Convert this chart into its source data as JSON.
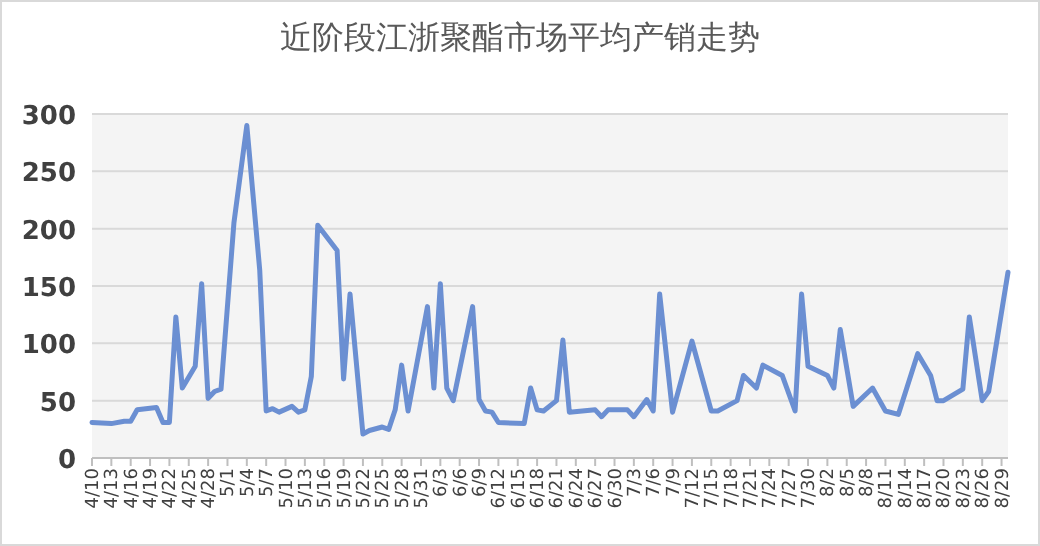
{
  "chart_data": {
    "type": "line",
    "title": "近阶段江浙聚酯市场平均产销走势",
    "x": [
      "--04-10",
      "--04-13",
      "--04-15",
      "--04-16",
      "--04-17",
      "--04-20",
      "--04-21",
      "--04-22",
      "--04-23",
      "--04-24",
      "--04-26",
      "--04-27",
      "--04-28",
      "--04-29",
      "--04-30",
      "--05-02",
      "--05-04",
      "--05-06",
      "--05-07",
      "--05-08",
      "--05-09",
      "--05-11",
      "--05-12",
      "--05-13",
      "--05-14",
      "--05-15",
      "--05-18",
      "--05-19",
      "--05-20",
      "--05-22",
      "--05-23",
      "--05-25",
      "--05-26",
      "--05-27",
      "--05-28",
      "--05-29",
      "--06-01",
      "--06-02",
      "--06-03",
      "--06-04",
      "--06-05",
      "--06-08",
      "--06-09",
      "--06-10",
      "--06-11",
      "--06-12",
      "--06-16",
      "--06-17",
      "--06-18",
      "--06-19",
      "--06-21",
      "--06-22",
      "--06-23",
      "--06-27",
      "--06-28",
      "--06-29",
      "--07-02",
      "--07-03",
      "--07-05",
      "--07-06",
      "--07-07",
      "--07-09",
      "--07-12",
      "--07-15",
      "--07-16",
      "--07-19",
      "--07-20",
      "--07-22",
      "--07-23",
      "--07-26",
      "--07-28",
      "--07-29",
      "--07-30",
      "--08-02",
      "--08-03",
      "--08-04",
      "--08-06",
      "--08-09",
      "--08-11",
      "--08-13",
      "--08-16",
      "--08-18",
      "--08-19",
      "--08-20",
      "--08-23",
      "--08-24",
      "--08-26",
      "--08-27",
      "--08-30"
    ],
    "values": [
      31,
      30,
      32,
      32,
      42,
      44,
      31,
      31,
      123,
      61,
      80,
      152,
      52,
      58,
      60,
      205,
      290,
      164,
      41,
      43,
      40,
      45,
      40,
      42,
      71,
      203,
      181,
      69,
      143,
      21,
      24,
      27,
      25,
      42,
      81,
      41,
      132,
      61,
      152,
      61,
      50,
      132,
      51,
      41,
      40,
      31,
      30,
      61,
      42,
      41,
      50,
      103,
      40,
      42,
      36,
      42,
      42,
      36,
      51,
      41,
      143,
      40,
      102,
      41,
      41,
      50,
      72,
      61,
      81,
      72,
      41,
      143,
      80,
      72,
      61,
      112,
      45,
      61,
      41,
      38,
      91,
      72,
      50,
      50,
      60,
      123,
      50,
      58,
      162
    ],
    "color": "#6b8fd2",
    "grid": "y",
    "marker": "none",
    "line_style": "solid",
    "xlim": [
      "--04-10",
      "--08-30"
    ],
    "xticks": [
      {
        "value": "--04-10",
        "label": "4/10"
      },
      {
        "value": "--04-13",
        "label": "4/13"
      },
      {
        "value": "--04-16",
        "label": "4/16"
      },
      {
        "value": "--04-19",
        "label": "4/19"
      },
      {
        "value": "--04-22",
        "label": "4/22"
      },
      {
        "value": "--04-25",
        "label": "4/25"
      },
      {
        "value": "--04-28",
        "label": "4/28"
      },
      {
        "value": "--05-01",
        "label": "5/1"
      },
      {
        "value": "--05-04",
        "label": "5/4"
      },
      {
        "value": "--05-07",
        "label": "5/7"
      },
      {
        "value": "--05-10",
        "label": "5/10"
      },
      {
        "value": "--05-13",
        "label": "5/13"
      },
      {
        "value": "--05-16",
        "label": "5/16"
      },
      {
        "value": "--05-19",
        "label": "5/19"
      },
      {
        "value": "--05-22",
        "label": "5/22"
      },
      {
        "value": "--05-25",
        "label": "5/25"
      },
      {
        "value": "--05-28",
        "label": "5/28"
      },
      {
        "value": "--05-31",
        "label": "5/31"
      },
      {
        "value": "--06-03",
        "label": "6/3"
      },
      {
        "value": "--06-06",
        "label": "6/6"
      },
      {
        "value": "--06-09",
        "label": "6/9"
      },
      {
        "value": "--06-12",
        "label": "6/12"
      },
      {
        "value": "--06-15",
        "label": "6/15"
      },
      {
        "value": "--06-18",
        "label": "6/18"
      },
      {
        "value": "--06-21",
        "label": "6/21"
      },
      {
        "value": "--06-24",
        "label": "6/24"
      },
      {
        "value": "--06-27",
        "label": "6/27"
      },
      {
        "value": "--06-30",
        "label": "6/30"
      },
      {
        "value": "--07-03",
        "label": "7/3"
      },
      {
        "value": "--07-06",
        "label": "7/6"
      },
      {
        "value": "--07-09",
        "label": "7/9"
      },
      {
        "value": "--07-12",
        "label": "7/12"
      },
      {
        "value": "--07-15",
        "label": "7/15"
      },
      {
        "value": "--07-18",
        "label": "7/18"
      },
      {
        "value": "--07-21",
        "label": "7/21"
      },
      {
        "value": "--07-24",
        "label": "7/24"
      },
      {
        "value": "--07-27",
        "label": "7/27"
      },
      {
        "value": "--07-30",
        "label": "7/30"
      },
      {
        "value": "--08-02",
        "label": "8/2"
      },
      {
        "value": "--08-05",
        "label": "8/5"
      },
      {
        "value": "--08-08",
        "label": "8/8"
      },
      {
        "value": "--08-11",
        "label": "8/11"
      },
      {
        "value": "--08-14",
        "label": "8/14"
      },
      {
        "value": "--08-17",
        "label": "8/17"
      },
      {
        "value": "--08-20",
        "label": "8/20"
      },
      {
        "value": "--08-23",
        "label": "8/23"
      },
      {
        "value": "--08-26",
        "label": "8/26"
      },
      {
        "value": "--08-29",
        "label": "8/29"
      }
    ],
    "ylim": [
      0,
      300
    ],
    "yticks": [
      0,
      50,
      100,
      150,
      200,
      250,
      300
    ]
  }
}
